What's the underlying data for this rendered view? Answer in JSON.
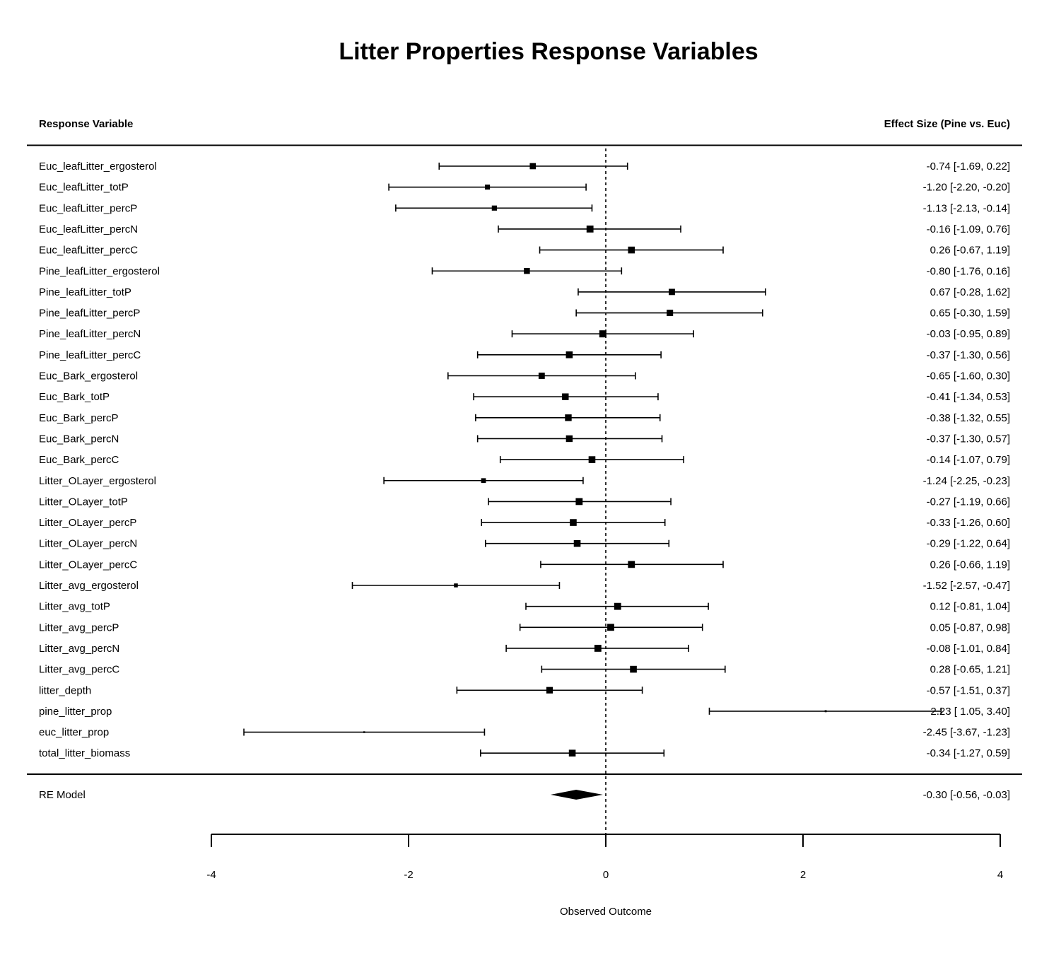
{
  "chart_data": {
    "type": "forest",
    "title": "Litter Properties Response Variables",
    "left_header": "Response Variable",
    "right_header": "Effect Size (Pine vs. Euc)",
    "xlabel": "Observed Outcome",
    "xlim": [
      -4,
      4
    ],
    "xticks": [
      -4,
      -2,
      0,
      2,
      4
    ],
    "reference_line": 0,
    "rows": [
      {
        "label": "Euc_leafLitter_ergosterol",
        "est": -0.74,
        "lo": -1.69,
        "hi": 0.22,
        "ci_text": "-0.74 [-1.69,  0.22]"
      },
      {
        "label": "Euc_leafLitter_totP",
        "est": -1.2,
        "lo": -2.2,
        "hi": -0.2,
        "ci_text": "-1.20 [-2.20, -0.20]"
      },
      {
        "label": "Euc_leafLitter_percP",
        "est": -1.13,
        "lo": -2.13,
        "hi": -0.14,
        "ci_text": "-1.13 [-2.13, -0.14]"
      },
      {
        "label": "Euc_leafLitter_percN",
        "est": -0.16,
        "lo": -1.09,
        "hi": 0.76,
        "ci_text": "-0.16 [-1.09,  0.76]"
      },
      {
        "label": "Euc_leafLitter_percC",
        "est": 0.26,
        "lo": -0.67,
        "hi": 1.19,
        "ci_text": "0.26 [-0.67,  1.19]"
      },
      {
        "label": "Pine_leafLitter_ergosterol",
        "est": -0.8,
        "lo": -1.76,
        "hi": 0.16,
        "ci_text": "-0.80 [-1.76,  0.16]"
      },
      {
        "label": "Pine_leafLitter_totP",
        "est": 0.67,
        "lo": -0.28,
        "hi": 1.62,
        "ci_text": "0.67 [-0.28,  1.62]"
      },
      {
        "label": "Pine_leafLitter_percP",
        "est": 0.65,
        "lo": -0.3,
        "hi": 1.59,
        "ci_text": "0.65 [-0.30,  1.59]"
      },
      {
        "label": "Pine_leafLitter_percN",
        "est": -0.03,
        "lo": -0.95,
        "hi": 0.89,
        "ci_text": "-0.03 [-0.95,  0.89]"
      },
      {
        "label": "Pine_leafLitter_percC",
        "est": -0.37,
        "lo": -1.3,
        "hi": 0.56,
        "ci_text": "-0.37 [-1.30,  0.56]"
      },
      {
        "label": "Euc_Bark_ergosterol",
        "est": -0.65,
        "lo": -1.6,
        "hi": 0.3,
        "ci_text": "-0.65 [-1.60,  0.30]"
      },
      {
        "label": "Euc_Bark_totP",
        "est": -0.41,
        "lo": -1.34,
        "hi": 0.53,
        "ci_text": "-0.41 [-1.34,  0.53]"
      },
      {
        "label": "Euc_Bark_percP",
        "est": -0.38,
        "lo": -1.32,
        "hi": 0.55,
        "ci_text": "-0.38 [-1.32,  0.55]"
      },
      {
        "label": "Euc_Bark_percN",
        "est": -0.37,
        "lo": -1.3,
        "hi": 0.57,
        "ci_text": "-0.37 [-1.30,  0.57]"
      },
      {
        "label": "Euc_Bark_percC",
        "est": -0.14,
        "lo": -1.07,
        "hi": 0.79,
        "ci_text": "-0.14 [-1.07,  0.79]"
      },
      {
        "label": "Litter_OLayer_ergosterol",
        "est": -1.24,
        "lo": -2.25,
        "hi": -0.23,
        "ci_text": "-1.24 [-2.25, -0.23]"
      },
      {
        "label": "Litter_OLayer_totP",
        "est": -0.27,
        "lo": -1.19,
        "hi": 0.66,
        "ci_text": "-0.27 [-1.19,  0.66]"
      },
      {
        "label": "Litter_OLayer_percP",
        "est": -0.33,
        "lo": -1.26,
        "hi": 0.6,
        "ci_text": "-0.33 [-1.26,  0.60]"
      },
      {
        "label": "Litter_OLayer_percN",
        "est": -0.29,
        "lo": -1.22,
        "hi": 0.64,
        "ci_text": "-0.29 [-1.22,  0.64]"
      },
      {
        "label": "Litter_OLayer_percC",
        "est": 0.26,
        "lo": -0.66,
        "hi": 1.19,
        "ci_text": "0.26 [-0.66,  1.19]"
      },
      {
        "label": "Litter_avg_ergosterol",
        "est": -1.52,
        "lo": -2.57,
        "hi": -0.47,
        "ci_text": "-1.52 [-2.57, -0.47]"
      },
      {
        "label": "Litter_avg_totP",
        "est": 0.12,
        "lo": -0.81,
        "hi": 1.04,
        "ci_text": "0.12 [-0.81,  1.04]"
      },
      {
        "label": "Litter_avg_percP",
        "est": 0.05,
        "lo": -0.87,
        "hi": 0.98,
        "ci_text": "0.05 [-0.87,  0.98]"
      },
      {
        "label": "Litter_avg_percN",
        "est": -0.08,
        "lo": -1.01,
        "hi": 0.84,
        "ci_text": "-0.08 [-1.01,  0.84]"
      },
      {
        "label": "Litter_avg_percC",
        "est": 0.28,
        "lo": -0.65,
        "hi": 1.21,
        "ci_text": "0.28 [-0.65,  1.21]"
      },
      {
        "label": "litter_depth",
        "est": -0.57,
        "lo": -1.51,
        "hi": 0.37,
        "ci_text": "-0.57 [-1.51,  0.37]"
      },
      {
        "label": "pine_litter_prop",
        "est": 2.23,
        "lo": 1.05,
        "hi": 3.4,
        "ci_text": "2.23 [ 1.05,  3.40]"
      },
      {
        "label": "euc_litter_prop",
        "est": -2.45,
        "lo": -3.67,
        "hi": -1.23,
        "ci_text": "-2.45 [-3.67, -1.23]"
      },
      {
        "label": "total_litter_biomass",
        "est": -0.34,
        "lo": -1.27,
        "hi": 0.59,
        "ci_text": "-0.34 [-1.27,  0.59]"
      }
    ],
    "summary": {
      "label": "RE Model",
      "est": -0.3,
      "lo": -0.56,
      "hi": -0.03,
      "ci_text": "-0.30 [-0.56, -0.03]"
    }
  }
}
